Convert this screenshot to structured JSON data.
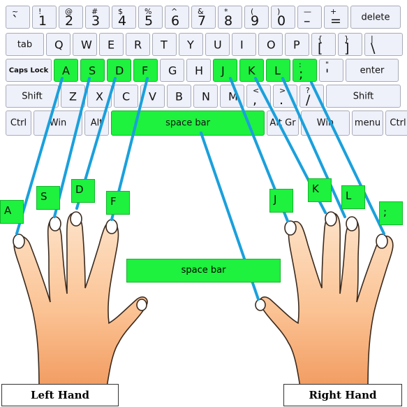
{
  "keyboard": {
    "row1": [
      {
        "up": "~",
        "lo": "`"
      },
      {
        "up": "!",
        "lo": "1"
      },
      {
        "up": "@",
        "lo": "2"
      },
      {
        "up": "#",
        "lo": "3"
      },
      {
        "up": "$",
        "lo": "4"
      },
      {
        "up": "%",
        "lo": "5"
      },
      {
        "up": "^",
        "lo": "6"
      },
      {
        "up": "&",
        "lo": "7"
      },
      {
        "up": "*",
        "lo": "8"
      },
      {
        "up": "(",
        "lo": "9"
      },
      {
        "up": ")",
        "lo": "0"
      },
      {
        "up": "—",
        "lo": "–"
      },
      {
        "up": "+",
        "lo": "="
      },
      {
        "label": "delete"
      }
    ],
    "row2": [
      "tab",
      "Q",
      "W",
      "E",
      "R",
      "T",
      "Y",
      "U",
      "I",
      "O",
      "P",
      {
        "up": "{",
        "lo": "["
      },
      {
        "up": "}",
        "lo": "]"
      },
      {
        "up": "|",
        "lo": "\\"
      }
    ],
    "row3": [
      "Caps Lock",
      "A",
      "S",
      "D",
      "F",
      "G",
      "H",
      "J",
      "K",
      "L",
      {
        "up": ":",
        "lo": ";"
      },
      {
        "up": "\"",
        "lo": "'"
      },
      "enter"
    ],
    "row4": [
      "Shift",
      "Z",
      "X",
      "C",
      "V",
      "B",
      "N",
      "M",
      {
        "up": "<",
        "lo": ","
      },
      {
        "up": ">",
        "lo": "."
      },
      {
        "up": "?",
        "lo": "/"
      },
      "Shift"
    ],
    "row5": [
      "Ctrl",
      "Win",
      "Alt",
      "space bar",
      "Alt Gr",
      "Win",
      "menu",
      "Ctrl"
    ]
  },
  "finger_labels": [
    "A",
    "S",
    "D",
    "F",
    "J",
    "K",
    "L",
    ";"
  ],
  "space_label": "space bar",
  "left_hand": "Left Hand",
  "right_hand": "Right Hand",
  "colors": {
    "home": "#1ef13e",
    "line": "#1aa0dc",
    "skin": "#fbc293",
    "key": "#eef0fa"
  }
}
